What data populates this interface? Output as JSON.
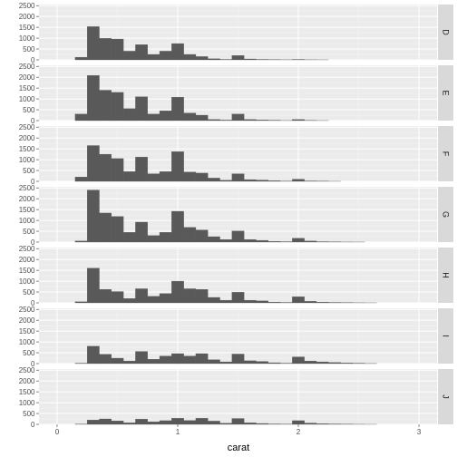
{
  "chart_data": {
    "type": "bar",
    "facet_by": "color",
    "xlabel": "carat",
    "ylabel": "",
    "xlim": [
      -0.15,
      3.15
    ],
    "ylim": [
      0,
      2550
    ],
    "x_ticks": [
      0,
      1,
      2,
      3
    ],
    "y_ticks": [
      0,
      500,
      1000,
      1500,
      2000,
      2500
    ],
    "bin_width": 0.1,
    "bin_starts": [
      0.15,
      0.25,
      0.35,
      0.45,
      0.55,
      0.65,
      0.75,
      0.85,
      0.95,
      1.05,
      1.15,
      1.25,
      1.35,
      1.45,
      1.55,
      1.65,
      1.75,
      1.85,
      1.95,
      2.05,
      2.15,
      2.25,
      2.35,
      2.45,
      2.55,
      2.65
    ],
    "panel_background": "#ebebeb",
    "strip_background": "#d9d9d9",
    "bar_fill": "#595959",
    "facets": [
      {
        "label": "D",
        "counts": [
          120,
          1530,
          990,
          960,
          400,
          700,
          250,
          400,
          750,
          250,
          150,
          50,
          20,
          200,
          40,
          20,
          10,
          5,
          20,
          5,
          3,
          0,
          0,
          0,
          0,
          0
        ]
      },
      {
        "label": "E",
        "counts": [
          300,
          2080,
          1400,
          1300,
          550,
          1100,
          300,
          450,
          1080,
          350,
          250,
          50,
          25,
          300,
          50,
          30,
          20,
          5,
          50,
          10,
          3,
          0,
          0,
          0,
          0,
          0
        ]
      },
      {
        "label": "F",
        "counts": [
          200,
          1650,
          1250,
          1050,
          450,
          1120,
          350,
          450,
          1370,
          430,
          380,
          150,
          50,
          350,
          80,
          60,
          30,
          10,
          100,
          20,
          10,
          3,
          0,
          0,
          0,
          0
        ]
      },
      {
        "label": "G",
        "counts": [
          50,
          2400,
          1340,
          1180,
          450,
          920,
          300,
          450,
          1420,
          680,
          560,
          250,
          120,
          510,
          120,
          80,
          30,
          20,
          180,
          50,
          20,
          10,
          5,
          3,
          0,
          0
        ]
      },
      {
        "label": "H",
        "counts": [
          50,
          1600,
          620,
          520,
          200,
          650,
          300,
          430,
          1000,
          650,
          620,
          250,
          120,
          490,
          120,
          90,
          30,
          20,
          280,
          70,
          30,
          20,
          10,
          5,
          2,
          0
        ]
      },
      {
        "label": "I",
        "counts": [
          20,
          800,
          430,
          250,
          120,
          560,
          200,
          350,
          460,
          350,
          460,
          180,
          80,
          440,
          130,
          100,
          40,
          20,
          310,
          120,
          80,
          50,
          30,
          20,
          5,
          0
        ]
      },
      {
        "label": "J",
        "counts": [
          10,
          200,
          250,
          160,
          70,
          240,
          120,
          170,
          280,
          180,
          280,
          150,
          50,
          270,
          70,
          40,
          20,
          10,
          170,
          60,
          30,
          20,
          10,
          5,
          2,
          0
        ]
      }
    ]
  }
}
